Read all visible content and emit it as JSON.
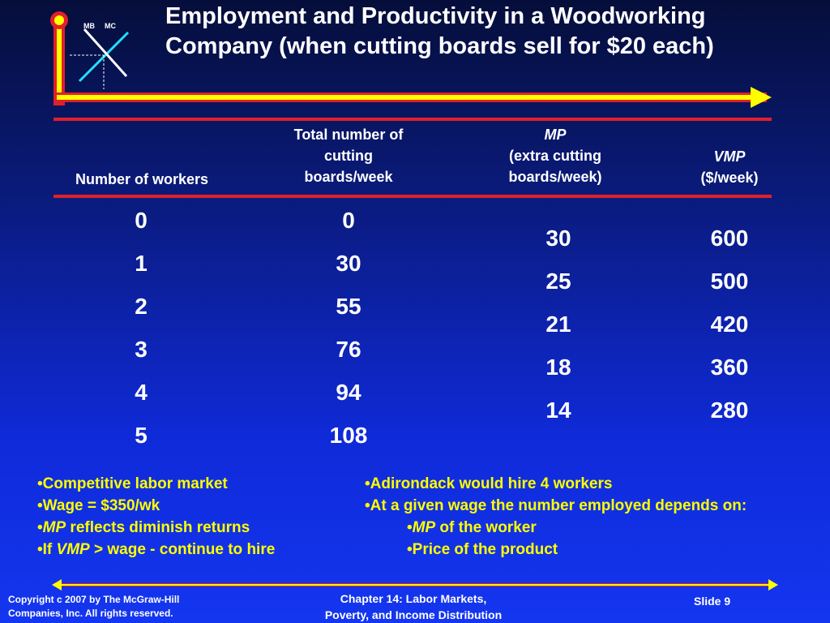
{
  "logo": {
    "mb_label": "MB",
    "mc_label": "MC"
  },
  "title": "Employment and Productivity in a Woodworking Company (when cutting boards sell for $20 each)",
  "table": {
    "headers": {
      "workers": "Number of workers",
      "total_line1": "Total number of",
      "total_line2": "cutting",
      "total_line3": "boards/week",
      "mp_line1": "MP",
      "mp_line2": "(extra cutting",
      "mp_line3": "boards/week)",
      "vmp_line1": "VMP",
      "vmp_line2": "($/week)"
    },
    "workers": [
      "0",
      "1",
      "2",
      "3",
      "4",
      "5"
    ],
    "total": [
      "0",
      "30",
      "55",
      "76",
      "94",
      "108"
    ],
    "mp": [
      "30",
      "25",
      "21",
      "18",
      "14"
    ],
    "vmp": [
      "600",
      "500",
      "420",
      "360",
      "280"
    ]
  },
  "left_bullets": {
    "b1": "Competitive labor market",
    "b2": "Wage = $350/wk",
    "b3_italic": "MP",
    "b3_rest": " reflects diminish returns",
    "b4_pre": "If ",
    "b4_italic": "VMP",
    "b4_rest": " > wage - continue to hire"
  },
  "right_bullets": {
    "b1": "Adirondack would hire 4 workers",
    "b2": "At a given wage the number employed depends on:",
    "s1_italic": "MP",
    "s1_rest": " of the worker",
    "s2": "Price of the product"
  },
  "footer": {
    "copyright_line1": "Copyright c 2007 by The McGraw-Hill",
    "copyright_line2": "Companies, Inc.  All rights reserved.",
    "chapter_line1": "Chapter 14: Labor Markets,",
    "chapter_line2": "Poverty, and Income Distribution",
    "slide": "Slide 9"
  },
  "colors": {
    "accent_yellow": "#ffff00",
    "accent_red": "#e0202a",
    "mb_line": "#22e0ff"
  }
}
